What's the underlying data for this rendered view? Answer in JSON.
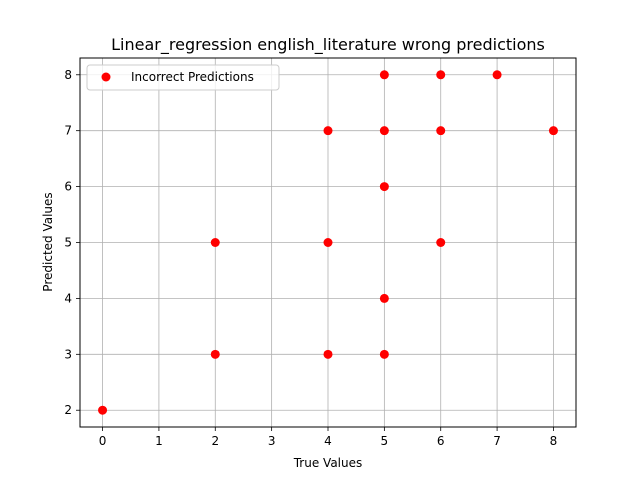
{
  "chart_data": {
    "type": "scatter",
    "title": "Linear_regression english_literature wrong predictions",
    "xlabel": "True Values",
    "ylabel": "Predicted Values",
    "xlim": [
      -0.4,
      8.4
    ],
    "ylim": [
      1.7,
      8.3
    ],
    "xticks": [
      0,
      1,
      2,
      3,
      4,
      5,
      6,
      7,
      8
    ],
    "yticks": [
      2,
      3,
      4,
      5,
      6,
      7,
      8
    ],
    "grid": true,
    "legend_position": "top-left",
    "series": [
      {
        "name": "Incorrect Predictions",
        "color": "#ff0000",
        "points": [
          {
            "x": 0,
            "y": 2
          },
          {
            "x": 2,
            "y": 3
          },
          {
            "x": 2,
            "y": 5
          },
          {
            "x": 4,
            "y": 3
          },
          {
            "x": 4,
            "y": 5
          },
          {
            "x": 4,
            "y": 7
          },
          {
            "x": 5,
            "y": 3
          },
          {
            "x": 5,
            "y": 4
          },
          {
            "x": 5,
            "y": 6
          },
          {
            "x": 5,
            "y": 7
          },
          {
            "x": 5,
            "y": 8
          },
          {
            "x": 6,
            "y": 5
          },
          {
            "x": 6,
            "y": 7
          },
          {
            "x": 6,
            "y": 8
          },
          {
            "x": 7,
            "y": 8
          },
          {
            "x": 8,
            "y": 7
          }
        ]
      }
    ]
  }
}
